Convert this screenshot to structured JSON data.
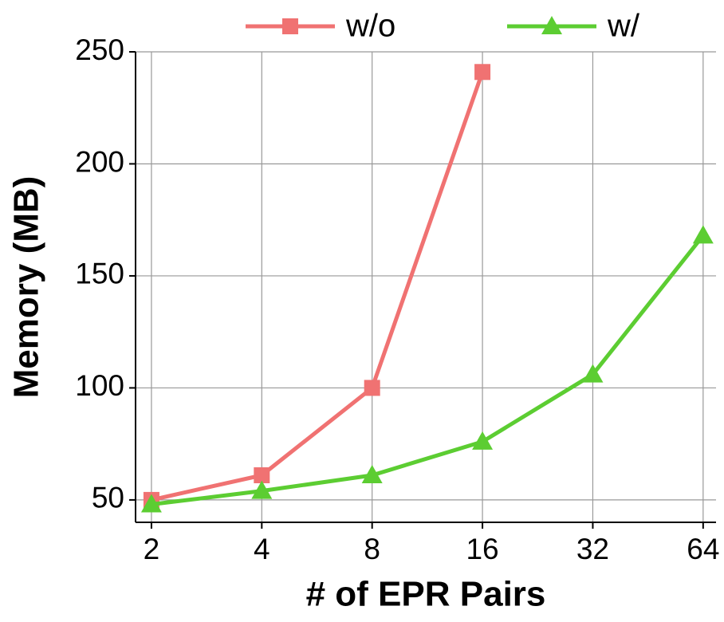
{
  "chart_data": {
    "type": "line",
    "x_label": "# of EPR Pairs",
    "y_label": "Memory (MB)",
    "x": [
      2,
      4,
      8,
      16,
      32,
      64
    ],
    "series": [
      {
        "name": "w/o",
        "color": "#f07272",
        "marker": "square",
        "values": [
          50,
          61,
          100,
          241,
          null,
          null
        ]
      },
      {
        "name": "w/",
        "color": "#5ccd32",
        "marker": "triangle",
        "values": [
          48,
          54,
          61,
          76,
          106,
          168
        ]
      }
    ],
    "xscale": "log",
    "xlim": [
      1.81,
      69.4
    ],
    "xticks": [
      2,
      4,
      8,
      16,
      32,
      64
    ],
    "ylim": [
      40,
      250
    ],
    "yticks": [
      50,
      100,
      150,
      200,
      250
    ],
    "grid": true,
    "legend": "top"
  }
}
